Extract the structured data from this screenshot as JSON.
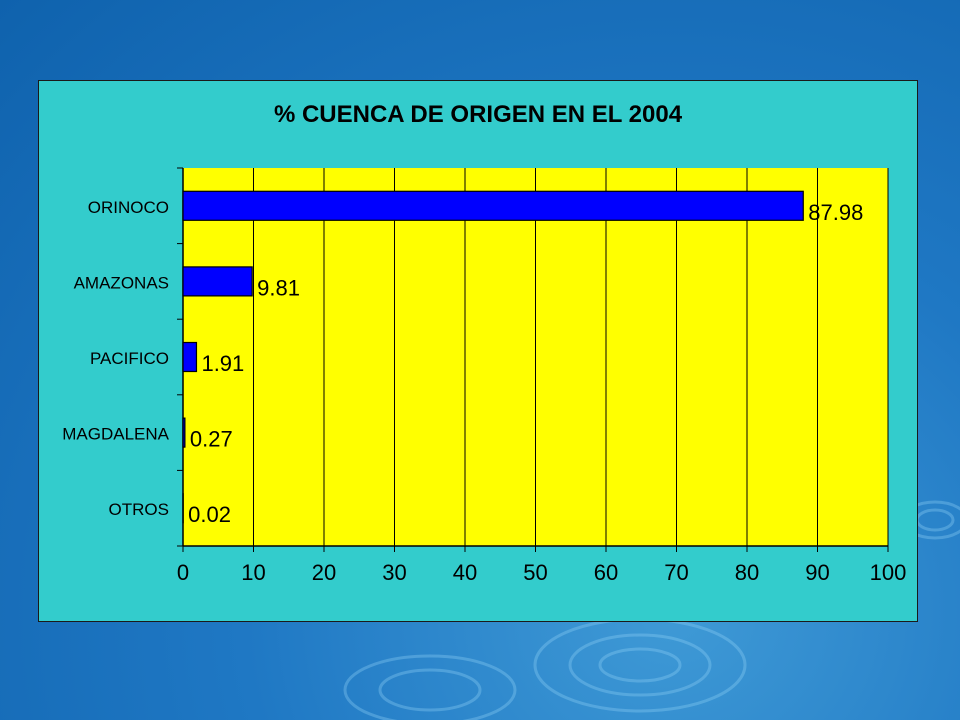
{
  "colors": {
    "plot_area": "#ffff00",
    "bar": "#0000ff",
    "panel": "#33cccc"
  },
  "chart_data": {
    "type": "bar",
    "orientation": "horizontal",
    "title": "% CUENCA DE ORIGEN EN EL 2004",
    "categories": [
      "ORINOCO",
      "AMAZONAS",
      "PACIFICO",
      "MAGDALENA",
      "OTROS"
    ],
    "values": [
      87.98,
      9.81,
      1.91,
      0.27,
      0.02
    ],
    "data_labels": [
      "87.98",
      "9.81",
      "1.91",
      "0.27",
      "0.02"
    ],
    "xlim": [
      0,
      100
    ],
    "xticks": [
      "0",
      "10",
      "20",
      "30",
      "40",
      "50",
      "60",
      "70",
      "80",
      "90",
      "100"
    ],
    "grid": "vertical",
    "legend": "none"
  }
}
